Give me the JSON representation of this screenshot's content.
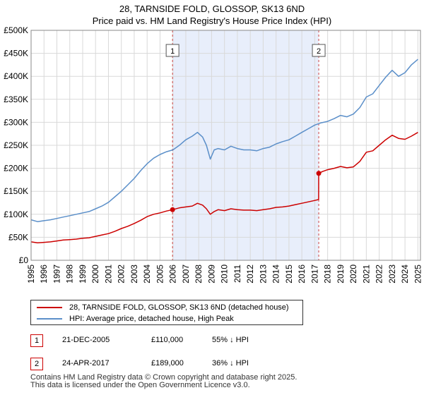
{
  "title": {
    "line1": "28, TARNSIDE FOLD, GLOSSOP, SK13 6ND",
    "line2": "Price paid vs. HM Land Registry's House Price Index (HPI)"
  },
  "colors": {
    "property": "#cc0000",
    "hpi": "#5b8fc9",
    "shade": "#e8eefb",
    "grid": "#d9d9d9",
    "marker_line": "#cc4444"
  },
  "chart_data": {
    "type": "line",
    "title": "28, TARNSIDE FOLD, GLOSSOP, SK13 6ND — Price paid vs. HM Land Registry's House Price Index (HPI)",
    "xlabel": "",
    "ylabel": "",
    "xlim": [
      1995,
      2025.2
    ],
    "ylim": [
      0,
      500000
    ],
    "grid": true,
    "y_ticks": [
      {
        "value": 0,
        "label": "£0"
      },
      {
        "value": 50000,
        "label": "£50K"
      },
      {
        "value": 100000,
        "label": "£100K"
      },
      {
        "value": 150000,
        "label": "£150K"
      },
      {
        "value": 200000,
        "label": "£200K"
      },
      {
        "value": 250000,
        "label": "£250K"
      },
      {
        "value": 300000,
        "label": "£300K"
      },
      {
        "value": 350000,
        "label": "£350K"
      },
      {
        "value": 400000,
        "label": "£400K"
      },
      {
        "value": 450000,
        "label": "£450K"
      },
      {
        "value": 500000,
        "label": "£500K"
      }
    ],
    "x_ticks": [
      "1995",
      "1996",
      "1997",
      "1998",
      "1999",
      "2000",
      "2001",
      "2002",
      "2003",
      "2004",
      "2005",
      "2006",
      "2007",
      "2008",
      "2009",
      "2010",
      "2011",
      "2012",
      "2013",
      "2014",
      "2015",
      "2016",
      "2017",
      "2018",
      "2019",
      "2020",
      "2021",
      "2022",
      "2023",
      "2024",
      "2025"
    ],
    "shaded_region": [
      2005.97,
      2017.31
    ],
    "series": [
      {
        "name": "28, TARNSIDE FOLD, GLOSSOP, SK13 6ND (detached house)",
        "color": "#cc0000",
        "x": [
          1995.0,
          1995.5,
          1996.0,
          1996.5,
          1997.0,
          1997.5,
          1998.0,
          1998.5,
          1999.0,
          1999.5,
          2000.0,
          2000.5,
          2001.0,
          2001.5,
          2002.0,
          2002.5,
          2003.0,
          2003.5,
          2004.0,
          2004.5,
          2005.0,
          2005.5,
          2005.97,
          2006.5,
          2007.0,
          2007.5,
          2007.9,
          2008.3,
          2008.6,
          2008.9,
          2009.2,
          2009.5,
          2010.0,
          2010.5,
          2011.0,
          2011.5,
          2012.0,
          2012.5,
          2013.0,
          2013.5,
          2014.0,
          2014.5,
          2015.0,
          2015.5,
          2016.0,
          2016.5,
          2017.0,
          2017.3,
          2017.31,
          2017.6,
          2018.0,
          2018.5,
          2019.0,
          2019.5,
          2020.0,
          2020.5,
          2021.0,
          2021.5,
          2022.0,
          2022.5,
          2023.0,
          2023.5,
          2024.0,
          2024.5,
          2025.0
        ],
        "y": [
          40000,
          38000,
          39000,
          40000,
          42000,
          44000,
          45000,
          46000,
          48000,
          49000,
          52000,
          55000,
          58000,
          63000,
          69000,
          74000,
          80000,
          87000,
          95000,
          100000,
          103000,
          107000,
          110000,
          114000,
          116000,
          118000,
          124000,
          120000,
          112000,
          100000,
          106000,
          110000,
          108000,
          112000,
          110000,
          109000,
          109000,
          108000,
          110000,
          112000,
          115000,
          116000,
          118000,
          121000,
          124000,
          127000,
          130000,
          132000,
          189000,
          193000,
          197000,
          200000,
          204000,
          201000,
          203000,
          215000,
          235000,
          238000,
          250000,
          262000,
          272000,
          265000,
          263000,
          270000,
          278000
        ]
      },
      {
        "name": "HPI: Average price, detached house, High Peak",
        "color": "#5b8fc9",
        "x": [
          1995.0,
          1995.5,
          1996.0,
          1996.5,
          1997.0,
          1997.5,
          1998.0,
          1998.5,
          1999.0,
          1999.5,
          2000.0,
          2000.5,
          2001.0,
          2001.5,
          2002.0,
          2002.5,
          2003.0,
          2003.5,
          2004.0,
          2004.5,
          2005.0,
          2005.5,
          2006.0,
          2006.5,
          2007.0,
          2007.5,
          2007.9,
          2008.3,
          2008.6,
          2008.9,
          2009.2,
          2009.5,
          2010.0,
          2010.5,
          2011.0,
          2011.5,
          2012.0,
          2012.5,
          2013.0,
          2013.5,
          2014.0,
          2014.5,
          2015.0,
          2015.5,
          2016.0,
          2016.5,
          2017.0,
          2017.5,
          2018.0,
          2018.5,
          2019.0,
          2019.5,
          2020.0,
          2020.5,
          2021.0,
          2021.5,
          2022.0,
          2022.5,
          2023.0,
          2023.5,
          2024.0,
          2024.5,
          2025.0
        ],
        "y": [
          88000,
          84000,
          86000,
          88000,
          91000,
          94000,
          97000,
          100000,
          103000,
          106000,
          112000,
          118000,
          126000,
          138000,
          150000,
          164000,
          178000,
          195000,
          210000,
          222000,
          230000,
          236000,
          240000,
          250000,
          262000,
          270000,
          278000,
          268000,
          250000,
          220000,
          240000,
          243000,
          240000,
          248000,
          243000,
          240000,
          240000,
          238000,
          243000,
          246000,
          253000,
          258000,
          262000,
          270000,
          278000,
          286000,
          294000,
          299000,
          302000,
          308000,
          315000,
          312000,
          318000,
          332000,
          355000,
          362000,
          380000,
          398000,
          413000,
          400000,
          408000,
          425000,
          437000
        ]
      }
    ],
    "sales": [
      {
        "id": "1",
        "x": 2005.97,
        "y": 110000
      },
      {
        "id": "2",
        "x": 2017.31,
        "y": 189000
      }
    ]
  },
  "legend": {
    "property_label": "28, TARNSIDE FOLD, GLOSSOP, SK13 6ND (detached house)",
    "hpi_label": "HPI: Average price, detached house, High Peak"
  },
  "sales_table": [
    {
      "id": "1",
      "date": "21-DEC-2005",
      "price": "£110,000",
      "hpi_diff": "55% ↓ HPI"
    },
    {
      "id": "2",
      "date": "24-APR-2017",
      "price": "£189,000",
      "hpi_diff": "36% ↓ HPI"
    }
  ],
  "footer": {
    "line1": "Contains HM Land Registry data © Crown copyright and database right 2025.",
    "line2": "This data is licensed under the Open Government Licence v3.0."
  }
}
